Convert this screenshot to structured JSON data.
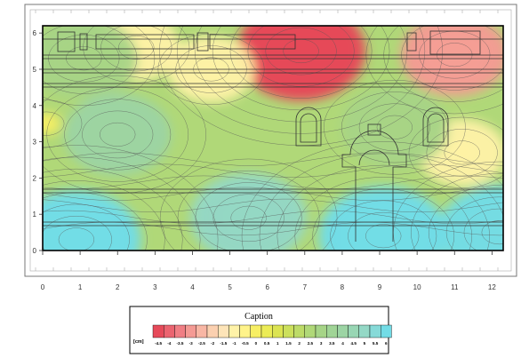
{
  "chart_data": {
    "type": "heatmap",
    "title": "",
    "xlabel": "",
    "ylabel": "",
    "xlim": [
      0,
      12.3
    ],
    "ylim": [
      0,
      6.2
    ],
    "x_ticks": [
      "0",
      "1",
      "2",
      "3",
      "4",
      "5",
      "6",
      "7",
      "8",
      "9",
      "10",
      "11",
      "12"
    ],
    "y_ticks": [
      "0",
      "1",
      "2",
      "3",
      "4",
      "5",
      "6"
    ],
    "colorbar": {
      "title": "Caption",
      "unit": "[cm]",
      "levels": [
        "-4.5",
        "-4",
        "-3.5",
        "-3",
        "-2.5",
        "-2",
        "-1.5",
        "-1",
        "-0.5",
        "0",
        "0.5",
        "1",
        "1.5",
        "2",
        "2.5",
        "3",
        "3.5",
        "4",
        "4.5",
        "5",
        "5.5",
        "6"
      ],
      "colors": [
        "#e64a5a",
        "#eb6470",
        "#f07e84",
        "#f49a94",
        "#f8b6a4",
        "#fbd0b0",
        "#fde4b8",
        "#fff2a8",
        "#fff38a",
        "#f7ef64",
        "#ecec56",
        "#dce452",
        "#cce05c",
        "#bddb68",
        "#b0d878",
        "#a6d487",
        "#a0d496",
        "#9cd4a4",
        "#98d6b4",
        "#94d8c6",
        "#86dad8",
        "#72dce6"
      ]
    },
    "features": [
      {
        "x": 6.9,
        "y": 5.5,
        "value": -4.5
      },
      {
        "x": 11.0,
        "y": 5.4,
        "value": -2.0
      },
      {
        "x": 2.5,
        "y": 5.6,
        "value": -1.0
      },
      {
        "x": 4.5,
        "y": 5.0,
        "value": -1.0
      },
      {
        "x": 11.2,
        "y": 2.7,
        "value": -1.0
      },
      {
        "x": 0.1,
        "y": 3.5,
        "value": -0.5
      },
      {
        "x": 1.1,
        "y": 5.3,
        "value": 2.5
      },
      {
        "x": 2.0,
        "y": 3.2,
        "value": 3.0
      },
      {
        "x": 9.4,
        "y": 3.4,
        "value": 2.5
      },
      {
        "x": 9.1,
        "y": 0.4,
        "value": 6.0
      },
      {
        "x": 0.9,
        "y": 0.3,
        "value": 6.0
      },
      {
        "x": 5.5,
        "y": 0.9,
        "value": 3.5
      },
      {
        "x": 12.2,
        "y": 0.5,
        "value": 4.0
      }
    ]
  }
}
